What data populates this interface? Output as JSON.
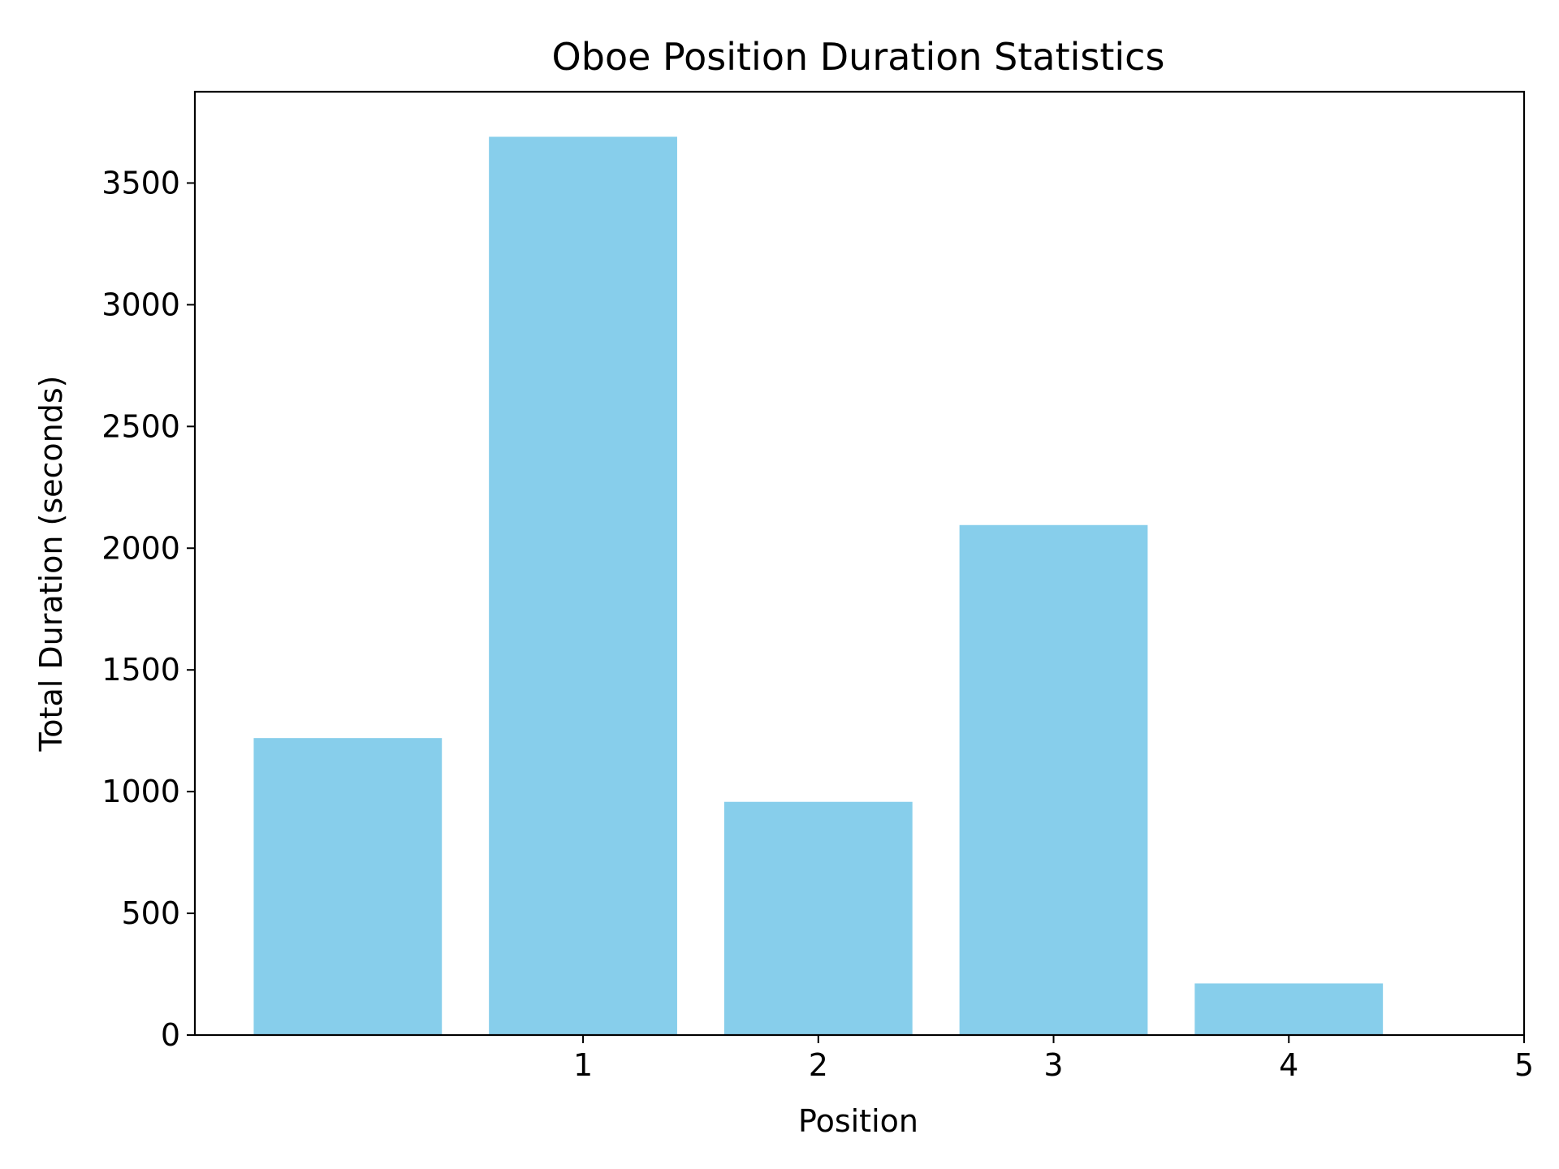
{
  "chart_data": {
    "type": "bar",
    "title": "Oboe Position Duration Statistics",
    "xlabel": "Position",
    "ylabel": "Total Duration (seconds)",
    "bars": [
      {
        "x": 0,
        "value": 1220
      },
      {
        "x": 1,
        "value": 3690
      },
      {
        "x": 2,
        "value": 958
      },
      {
        "x": 3,
        "value": 2095
      },
      {
        "x": 4,
        "value": 212
      }
    ],
    "xticks": [
      1,
      2,
      3,
      4,
      5
    ],
    "yticks": [
      0,
      500,
      1000,
      1500,
      2000,
      2500,
      3000,
      3500
    ],
    "xlim": [
      -0.65,
      5
    ],
    "ylim": [
      0,
      3875
    ],
    "bar_color": "#87CEEB",
    "grid": false,
    "legend": false
  }
}
